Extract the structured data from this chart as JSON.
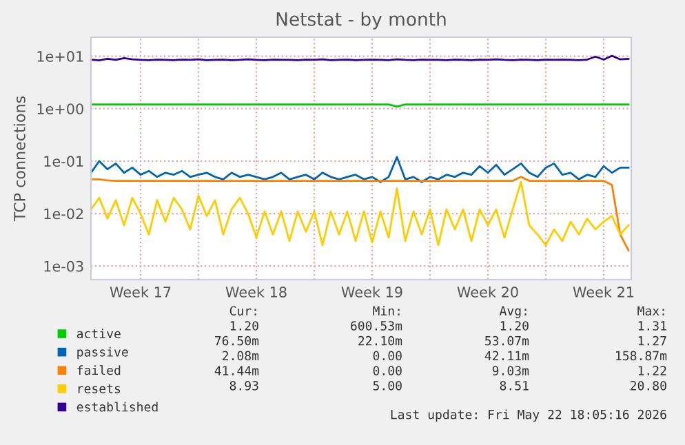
{
  "chart_data": {
    "type": "line",
    "title": "Netstat - by month",
    "ylabel": "TCP connections",
    "log": "y",
    "ylim": [
      0.00055,
      23
    ],
    "yticks": [
      {
        "value": 0.001,
        "label": "1e-03"
      },
      {
        "value": 0.01,
        "label": "1e-02"
      },
      {
        "value": 0.1,
        "label": "1e-01"
      },
      {
        "value": 1,
        "label": "1e+00"
      },
      {
        "value": 10,
        "label": "1e+01"
      }
    ],
    "xlim": [
      "2026-04-20T12:00",
      "2026-05-23T04:00"
    ],
    "xticks": [
      {
        "value": "2026-04-23T12:00",
        "label": "Week 17"
      },
      {
        "value": "2026-04-27",
        "label": null
      },
      {
        "value": "2026-04-30T12:00",
        "label": "Week 18"
      },
      {
        "value": "2026-05-04",
        "label": null
      },
      {
        "value": "2026-05-07T12:00",
        "label": "Week 19"
      },
      {
        "value": "2026-05-11",
        "label": null
      },
      {
        "value": "2026-05-14T12:00",
        "label": "Week 20"
      },
      {
        "value": "2026-05-18",
        "label": null
      },
      {
        "value": "2026-05-21T12:00",
        "label": "Week 21"
      }
    ],
    "grid": true,
    "legend": "bottom",
    "marker": "none",
    "line_style": "solid",
    "x": [
      "2026-04-20T12:00",
      "2026-04-21T00:00",
      "2026-04-21T12:00",
      "2026-04-22T00:00",
      "2026-04-22T12:00",
      "2026-04-23T00:00",
      "2026-04-23T12:00",
      "2026-04-24T00:00",
      "2026-04-24T12:00",
      "2026-04-25T00:00",
      "2026-04-25T12:00",
      "2026-04-26T00:00",
      "2026-04-26T12:00",
      "2026-04-27T00:00",
      "2026-04-27T12:00",
      "2026-04-28T00:00",
      "2026-04-28T12:00",
      "2026-04-29T00:00",
      "2026-04-29T12:00",
      "2026-04-30T00:00",
      "2026-04-30T12:00",
      "2026-05-01T00:00",
      "2026-05-01T12:00",
      "2026-05-02T00:00",
      "2026-05-02T12:00",
      "2026-05-03T00:00",
      "2026-05-03T12:00",
      "2026-05-04T00:00",
      "2026-05-04T12:00",
      "2026-05-05T00:00",
      "2026-05-05T12:00",
      "2026-05-06T00:00",
      "2026-05-06T12:00",
      "2026-05-07T00:00",
      "2026-05-07T12:00",
      "2026-05-08T00:00",
      "2026-05-08T12:00",
      "2026-05-09T00:00",
      "2026-05-09T12:00",
      "2026-05-10T00:00",
      "2026-05-10T12:00",
      "2026-05-11T00:00",
      "2026-05-11T12:00",
      "2026-05-12T00:00",
      "2026-05-12T12:00",
      "2026-05-13T00:00",
      "2026-05-13T12:00",
      "2026-05-14T00:00",
      "2026-05-14T12:00",
      "2026-05-15T00:00",
      "2026-05-15T12:00",
      "2026-05-16T00:00",
      "2026-05-16T12:00",
      "2026-05-17T00:00",
      "2026-05-17T12:00",
      "2026-05-18T00:00",
      "2026-05-18T12:00",
      "2026-05-19T00:00",
      "2026-05-19T12:00",
      "2026-05-20T00:00",
      "2026-05-20T12:00",
      "2026-05-21T00:00",
      "2026-05-21T12:00",
      "2026-05-22T00:00",
      "2026-05-22T12:00",
      "2026-05-23T00:00"
    ],
    "series": [
      {
        "name": "active",
        "color": "#00cc00",
        "values": [
          1.2,
          1.2,
          1.2,
          1.2,
          1.2,
          1.2,
          1.2,
          1.2,
          1.2,
          1.2,
          1.2,
          1.2,
          1.2,
          1.2,
          1.2,
          1.2,
          1.2,
          1.2,
          1.2,
          1.2,
          1.2,
          1.2,
          1.2,
          1.2,
          1.2,
          1.2,
          1.2,
          1.2,
          1.2,
          1.2,
          1.2,
          1.2,
          1.2,
          1.2,
          1.2,
          1.2,
          1.2,
          1.1,
          1.2,
          1.2,
          1.2,
          1.2,
          1.2,
          1.2,
          1.2,
          1.2,
          1.2,
          1.2,
          1.2,
          1.2,
          1.2,
          1.2,
          1.2,
          1.2,
          1.2,
          1.2,
          1.2,
          1.2,
          1.2,
          1.2,
          1.2,
          1.2,
          1.2,
          1.2,
          1.2,
          1.2
        ]
      },
      {
        "name": "passive",
        "color": "#0066b3",
        "values": [
          0.06,
          0.1,
          0.07,
          0.09,
          0.06,
          0.075,
          0.055,
          0.065,
          0.05,
          0.06,
          0.055,
          0.065,
          0.05,
          0.055,
          0.06,
          0.05,
          0.045,
          0.06,
          0.05,
          0.055,
          0.05,
          0.045,
          0.05,
          0.06,
          0.045,
          0.05,
          0.055,
          0.045,
          0.06,
          0.05,
          0.045,
          0.05,
          0.055,
          0.045,
          0.05,
          0.04,
          0.05,
          0.12,
          0.045,
          0.05,
          0.04,
          0.05,
          0.045,
          0.055,
          0.05,
          0.06,
          0.055,
          0.08,
          0.06,
          0.085,
          0.055,
          0.07,
          0.09,
          0.06,
          0.05,
          0.075,
          0.09,
          0.055,
          0.06,
          0.045,
          0.055,
          0.05,
          0.08,
          0.06,
          0.075,
          0.075
        ]
      },
      {
        "name": "failed",
        "color": "#ff8000",
        "values": [
          0.045,
          0.045,
          0.043,
          0.042,
          0.042,
          0.042,
          0.042,
          0.042,
          0.042,
          0.042,
          0.042,
          0.042,
          0.042,
          0.042,
          0.042,
          0.042,
          0.042,
          0.042,
          0.042,
          0.042,
          0.042,
          0.042,
          0.042,
          0.042,
          0.042,
          0.042,
          0.042,
          0.042,
          0.042,
          0.042,
          0.042,
          0.042,
          0.042,
          0.042,
          0.042,
          0.042,
          0.042,
          0.042,
          0.042,
          0.042,
          0.042,
          0.042,
          0.042,
          0.042,
          0.042,
          0.042,
          0.042,
          0.042,
          0.042,
          0.042,
          0.042,
          0.042,
          0.05,
          0.042,
          0.042,
          0.042,
          0.042,
          0.042,
          0.042,
          0.042,
          0.042,
          0.042,
          0.042,
          0.035,
          0.004,
          0.002
        ]
      },
      {
        "name": "resets",
        "color": "#ffcc00",
        "values": [
          0.012,
          0.02,
          0.008,
          0.018,
          0.006,
          0.02,
          0.01,
          0.004,
          0.018,
          0.007,
          0.02,
          0.012,
          0.005,
          0.022,
          0.009,
          0.018,
          0.004,
          0.012,
          0.02,
          0.01,
          0.0035,
          0.011,
          0.004,
          0.011,
          0.003,
          0.011,
          0.0045,
          0.011,
          0.0025,
          0.011,
          0.004,
          0.011,
          0.003,
          0.011,
          0.0028,
          0.011,
          0.0035,
          0.03,
          0.003,
          0.011,
          0.004,
          0.012,
          0.0025,
          0.012,
          0.005,
          0.012,
          0.003,
          0.012,
          0.006,
          0.012,
          0.0035,
          0.012,
          0.04,
          0.006,
          0.004,
          0.0025,
          0.005,
          0.003,
          0.007,
          0.004,
          0.008,
          0.005,
          0.007,
          0.009,
          0.004,
          0.006
        ]
      },
      {
        "name": "established",
        "color": "#330099",
        "values": [
          8.6,
          8.3,
          8.9,
          8.5,
          9.2,
          8.7,
          8.5,
          8.4,
          8.6,
          8.5,
          8.4,
          8.6,
          8.5,
          8.7,
          8.4,
          8.5,
          8.6,
          8.4,
          8.5,
          8.7,
          8.5,
          8.4,
          8.6,
          8.5,
          8.5,
          8.4,
          8.6,
          8.5,
          8.7,
          8.4,
          8.5,
          8.6,
          8.4,
          8.5,
          8.6,
          8.5,
          8.4,
          8.7,
          8.5,
          8.4,
          8.6,
          8.5,
          8.5,
          8.4,
          8.6,
          8.5,
          8.4,
          8.6,
          8.5,
          8.7,
          8.5,
          8.4,
          8.6,
          8.5,
          8.4,
          8.6,
          8.5,
          8.6,
          8.5,
          8.4,
          8.6,
          9.8,
          8.6,
          10.2,
          8.7,
          8.9
        ]
      }
    ],
    "annotations": [
      "Cur:\n1.20\n76.50m\n2.08m\n41.44m\n8.93",
      "Min:\n600.53m\n22.10m\n0.00\n0.00\n5.00",
      "Avg:\n1.20\n53.07m\n42.11m\n9.03m\n8.51",
      "Max:\n1.31\n1.27\n158.87m\n1.22\n20.80",
      "Last update: Fri May 22 18:05:16 2026"
    ]
  }
}
